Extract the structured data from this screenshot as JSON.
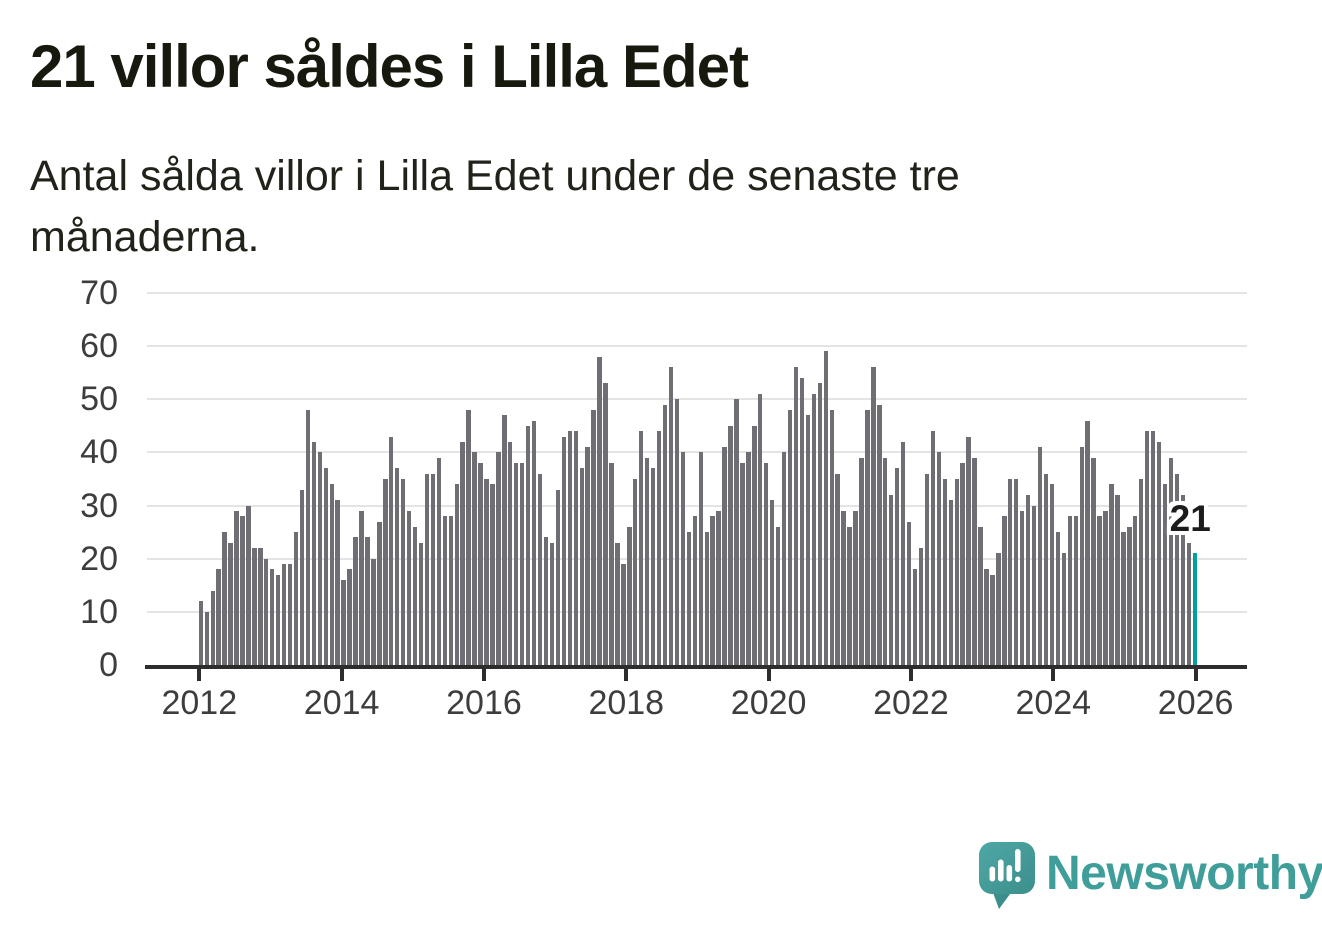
{
  "header": {
    "title": "21 villor såldes i Lilla Edet",
    "subtitle": "Antal sålda villor i Lilla Edet under de senaste tre månaderna."
  },
  "chart_data": {
    "type": "bar",
    "title": "Antal sålda villor i Lilla Edet under de senaste tre månaderna",
    "frequency": "monthly",
    "start_year": 2012,
    "ylim": [
      0,
      70
    ],
    "y_ticks": [
      0,
      10,
      20,
      30,
      40,
      50,
      60,
      70
    ],
    "x_tick_labels": [
      "2012",
      "2014",
      "2016",
      "2018",
      "2020",
      "2022",
      "2024",
      "2026"
    ],
    "grid": true,
    "legend": "none",
    "bar_color": "#6f6e74",
    "highlight_color": "#00a09c",
    "annotation": {
      "text": "21",
      "value": 21
    },
    "series": [
      {
        "year": 2012,
        "values": [
          12,
          10,
          14,
          18,
          25,
          23,
          29,
          28,
          30,
          22,
          22,
          20
        ]
      },
      {
        "year": 2013,
        "values": [
          18,
          17,
          19,
          19,
          25,
          33,
          48,
          42,
          40,
          37,
          34,
          31
        ]
      },
      {
        "year": 2014,
        "values": [
          16,
          18,
          24,
          29,
          24,
          20,
          27,
          35,
          43,
          37,
          35,
          29
        ]
      },
      {
        "year": 2015,
        "values": [
          26,
          23,
          36,
          36,
          39,
          28,
          28,
          34,
          42,
          48,
          40,
          38
        ]
      },
      {
        "year": 2016,
        "values": [
          35,
          34,
          40,
          47,
          42,
          38,
          38,
          45,
          46,
          36,
          24,
          23
        ]
      },
      {
        "year": 2017,
        "values": [
          33,
          43,
          44,
          44,
          37,
          41,
          48,
          58,
          53,
          38,
          23,
          19
        ]
      },
      {
        "year": 2018,
        "values": [
          26,
          35,
          44,
          39,
          37,
          44,
          49,
          56,
          50,
          40,
          25,
          28
        ]
      },
      {
        "year": 2019,
        "values": [
          40,
          25,
          28,
          29,
          41,
          45,
          50,
          38,
          40,
          45,
          51,
          38
        ]
      },
      {
        "year": 2020,
        "values": [
          31,
          26,
          40,
          48,
          56,
          54,
          47,
          51,
          53,
          59,
          48,
          36
        ]
      },
      {
        "year": 2021,
        "values": [
          29,
          26,
          29,
          39,
          48,
          56,
          49,
          39,
          32,
          37,
          42,
          27
        ]
      },
      {
        "year": 2022,
        "values": [
          18,
          22,
          36,
          44,
          40,
          35,
          31,
          35,
          38,
          43,
          39,
          26
        ]
      },
      {
        "year": 2023,
        "values": [
          18,
          17,
          21,
          28,
          35,
          35,
          29,
          32,
          30,
          41,
          36,
          34
        ]
      },
      {
        "year": 2024,
        "values": [
          25,
          21,
          28,
          28,
          41,
          46,
          39,
          28,
          29,
          34,
          32,
          25
        ]
      },
      {
        "year": 2025,
        "values": [
          26,
          28,
          35,
          44,
          44,
          42,
          34,
          39,
          36,
          32,
          23,
          21
        ]
      }
    ]
  },
  "footer": {
    "brand": "Newsworthy",
    "brand_color": "#3f9e99",
    "logo_icon": "speech-bubble-bar-chart-icon"
  }
}
